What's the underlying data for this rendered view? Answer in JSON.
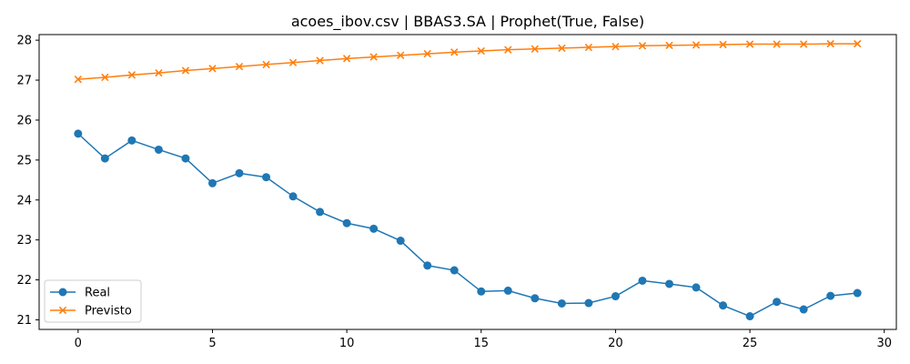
{
  "chart_data": {
    "type": "line",
    "title": "acoes_ibov.csv | BBAS3.SA | Prophet(True, False)",
    "xlabel": "",
    "ylabel": "",
    "xlim": [
      -1.45,
      30.45
    ],
    "ylim": [
      20.76,
      28.14
    ],
    "x_ticks": [
      0,
      5,
      10,
      15,
      20,
      25,
      30
    ],
    "y_ticks": [
      21,
      22,
      23,
      24,
      25,
      26,
      27,
      28
    ],
    "grid": false,
    "legend_position": "lower-left",
    "x": [
      0,
      1,
      2,
      3,
      4,
      5,
      6,
      7,
      8,
      9,
      10,
      11,
      12,
      13,
      14,
      15,
      16,
      17,
      18,
      19,
      20,
      21,
      22,
      23,
      24,
      25,
      26,
      27,
      28,
      29
    ],
    "series": [
      {
        "name": "Real",
        "color": "#1f77b4",
        "marker": "circle",
        "values": [
          25.66,
          25.04,
          25.49,
          25.26,
          25.04,
          24.42,
          24.67,
          24.57,
          24.09,
          23.7,
          23.42,
          23.28,
          22.98,
          22.36,
          22.24,
          21.71,
          21.73,
          21.54,
          21.41,
          21.42,
          21.59,
          21.98,
          21.9,
          21.81,
          21.36,
          21.09,
          21.45,
          21.26,
          21.6,
          21.67
        ]
      },
      {
        "name": "Previsto",
        "color": "#ff7f0e",
        "marker": "x",
        "values": [
          27.02,
          27.07,
          27.13,
          27.18,
          27.24,
          27.29,
          27.34,
          27.39,
          27.44,
          27.49,
          27.54,
          27.58,
          27.62,
          27.66,
          27.7,
          27.73,
          27.76,
          27.78,
          27.8,
          27.82,
          27.84,
          27.86,
          27.87,
          27.88,
          27.89,
          27.9,
          27.9,
          27.9,
          27.91,
          27.91
        ]
      }
    ]
  }
}
